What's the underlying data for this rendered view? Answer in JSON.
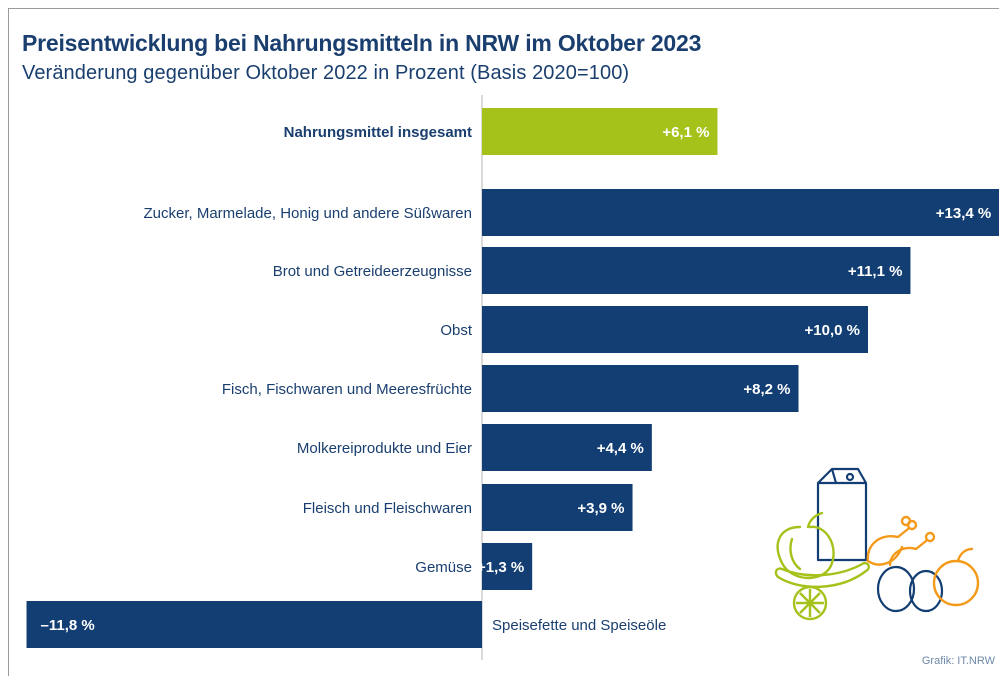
{
  "title": "Preisentwicklung bei Nahrungsmitteln in NRW im Oktober 2023",
  "subtitle": "Veränderung gegenüber Oktober 2022 in Prozent (Basis 2020=100)",
  "source": "Grafik: IT.NRW",
  "colors": {
    "accent_green": "#a5c21b",
    "bar_blue": "#123e73",
    "text_blue": "#1a3f6f"
  },
  "chart_data": {
    "type": "bar",
    "orientation": "horizontal",
    "categories": [
      "Nahrungsmittel insgesamt",
      "Zucker, Marmelade, Honig und andere Süßwaren",
      "Brot und Getreideerzeugnisse",
      "Obst",
      "Fisch, Fischwaren und Meeresfrüchte",
      "Molkereiprodukte und Eier",
      "Fleisch und Fleischwaren",
      "Gemüse",
      "Speisefette und Speiseöle"
    ],
    "values": [
      6.1,
      13.4,
      11.1,
      10.0,
      8.2,
      4.4,
      3.9,
      1.3,
      -11.8
    ],
    "value_labels": [
      "+6,1 %",
      "+13,4 %",
      "+11,1 %",
      "+10,0 %",
      "+8,2 %",
      "+4,4 %",
      "+3,9 %",
      "+1,3 %",
      "–11,8 %"
    ],
    "highlight": [
      true,
      false,
      false,
      false,
      false,
      false,
      false,
      false,
      false
    ],
    "xlim": [
      -11.8,
      13.4
    ],
    "xlabel": "",
    "ylabel": "",
    "grid": false,
    "legend": "none"
  },
  "illustration": {
    "icon": "groceries-illustration"
  }
}
